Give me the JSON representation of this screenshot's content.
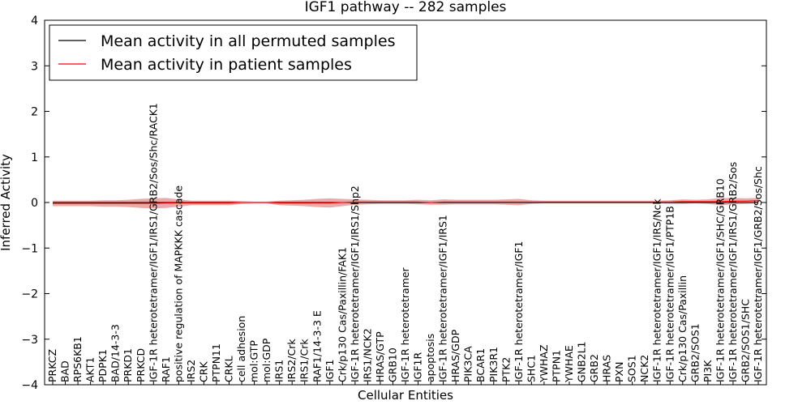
{
  "chart_data": {
    "type": "line",
    "title": "IGF1 pathway -- 282 samples",
    "xlabel": "Cellular Entities",
    "ylabel": "Inferred Activity",
    "ylim": [
      -4,
      4
    ],
    "yticks": [
      "−4",
      "−3",
      "−2",
      "−1",
      "0",
      "1",
      "2",
      "3",
      "4"
    ],
    "grid": false,
    "legend_position": "top-left",
    "categories": [
      "PRKCZ",
      "BAD",
      "RPS6KB1",
      "AKT1",
      "PDPK1",
      "BAD/14-3-3",
      "PRKD1",
      "PRKCD",
      "IGF-1R heterotetramer/IGF1/IRS1/GRB2/Sos/Shc/RACK1",
      "RAF1",
      "positive regulation of MAPKKK cascade",
      "IRS2",
      "CRK",
      "PTPN11",
      "CRKL",
      "cell adhesion",
      "mol:GTP",
      "mol:GDP",
      "IRS1",
      "IRS2/Crk",
      "IRS1/Crk",
      "RAF1/14-3-3 E",
      "IGF1",
      "Crk/p130 Cas/Paxillin/FAK1",
      "IGF-1R heterotetramer/IGF1/IRS1/Shp2",
      "IRS1/NCK2",
      "HRAS/GTP",
      "GRB10",
      "IGF-1R heterotetramer",
      "IGF1R",
      "apoptosis",
      "IGF-1R heterotetramer/IGF1/IRS1",
      "HRAS/GDP",
      "PIK3CA",
      "BCAR1",
      "PIK3R1",
      "PTK2",
      "IGF-1R heterotetramer/IGF1",
      "SHC1",
      "YWHAZ",
      "PTPN1",
      "YWHAE",
      "GNB2L1",
      "GRB2",
      "HRAS",
      "PXN",
      "SOS1",
      "NCK2",
      "IGF-1R heterotetramer/IGF1/IRS/Nck",
      "IGF-1R heterotetramer/IGF1/PTP1B",
      "Crk/p130 Cas/Paxillin",
      "GRB2/SOS1",
      "PI3K",
      "IGF-1R heterotetramer/IGF1/SHC/GRB10",
      "IGF-1R heterotetramer/IGF1/IRS1/GRB2/Sos",
      "GRB2/SOS1/SHC",
      "IGF-1R heterotetramer/IGF1/GRB2/Sos/Shc"
    ],
    "series": [
      {
        "name": "Mean activity in all permuted samples",
        "color": "#000000",
        "values": [
          0,
          0,
          0,
          0,
          0,
          0,
          0,
          0,
          0,
          0,
          0,
          0,
          0,
          0,
          0,
          0,
          0,
          0,
          0,
          0,
          0,
          0,
          0,
          0,
          0,
          0,
          0,
          0,
          0,
          0,
          0,
          0,
          0,
          0,
          0,
          0,
          0,
          0,
          0,
          0,
          0,
          0,
          0,
          0,
          0,
          0,
          0,
          0,
          0,
          0,
          0,
          0,
          0,
          0,
          0,
          0,
          0
        ]
      },
      {
        "name": "Mean activity in patient samples",
        "color": "#ff0000",
        "band_color": "#e07070",
        "values": [
          -0.02,
          -0.02,
          -0.02,
          -0.02,
          -0.02,
          -0.02,
          -0.02,
          -0.02,
          -0.02,
          -0.01,
          -0.01,
          -0.01,
          -0.01,
          -0.01,
          -0.01,
          0.0,
          0.0,
          0.0,
          -0.01,
          -0.01,
          -0.01,
          -0.01,
          -0.01,
          0.0,
          0.01,
          0.01,
          0.01,
          0.01,
          0.01,
          0.01,
          0.0,
          0.01,
          0.01,
          0.01,
          0.01,
          0.01,
          0.01,
          0.01,
          0.01,
          0.01,
          0.01,
          0.01,
          0.01,
          0.01,
          0.01,
          0.01,
          0.01,
          0.01,
          0.01,
          0.01,
          0.02,
          0.02,
          0.02,
          0.02,
          0.03,
          0.03,
          0.04
        ],
        "band_halfwidth": [
          0.06,
          0.06,
          0.06,
          0.06,
          0.07,
          0.07,
          0.08,
          0.1,
          0.11,
          0.11,
          0.08,
          0.05,
          0.05,
          0.05,
          0.05,
          0.03,
          0.02,
          0.02,
          0.05,
          0.06,
          0.07,
          0.09,
          0.1,
          0.08,
          0.06,
          0.05,
          0.04,
          0.04,
          0.04,
          0.05,
          0.05,
          0.06,
          0.05,
          0.05,
          0.05,
          0.05,
          0.06,
          0.07,
          0.04,
          0.03,
          0.03,
          0.03,
          0.03,
          0.03,
          0.03,
          0.03,
          0.03,
          0.03,
          0.03,
          0.04,
          0.05,
          0.04,
          0.05,
          0.08,
          0.07,
          0.06,
          0.06
        ]
      }
    ]
  }
}
